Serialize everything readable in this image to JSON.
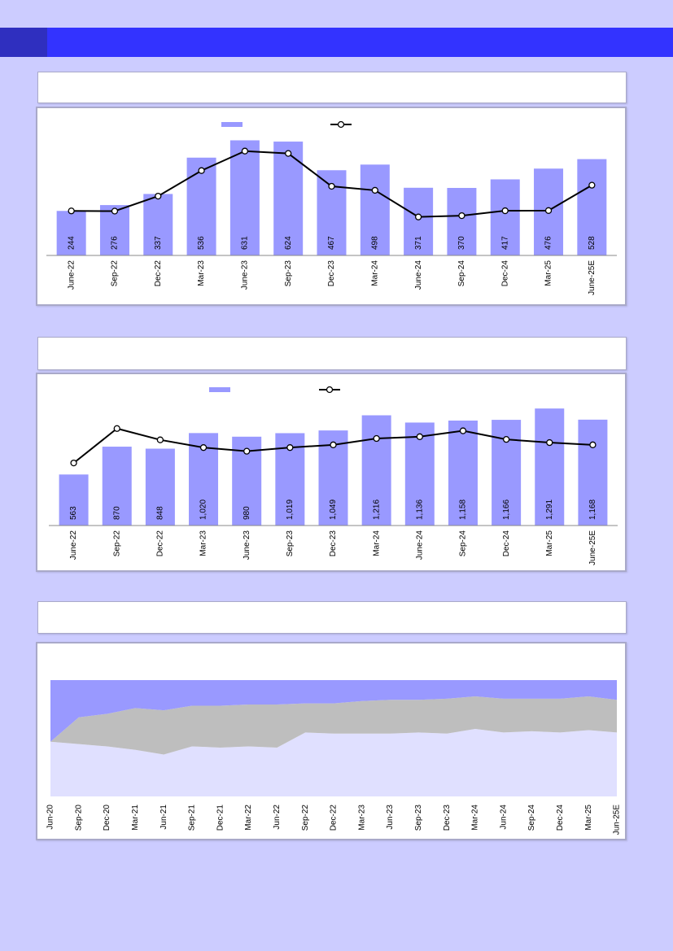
{
  "page": {
    "band_color": "#3333ff",
    "background": "#ccccff"
  },
  "chart_data": [
    {
      "type": "bar",
      "categories": [
        "June-22",
        "Sep-22",
        "Dec-22",
        "Mar-23",
        "June-23",
        "Sep-23",
        "Dec-23",
        "Mar-24",
        "June-24",
        "Sep-24",
        "Dec-24",
        "Mar-25",
        "June-25E"
      ],
      "series": [
        {
          "kind": "bar",
          "color": "#9999ff",
          "values": [
            244,
            276,
            337,
            536,
            631,
            624,
            467,
            498,
            371,
            370,
            417,
            476,
            528
          ]
        },
        {
          "kind": "line",
          "color": "#000000",
          "marker": "circle",
          "values": [
            244,
            243,
            325,
            465,
            572,
            559,
            379,
            357,
            211,
            218,
            245,
            246,
            385
          ]
        }
      ],
      "legend_position": "top-center",
      "ylim": [
        0,
        700
      ]
    },
    {
      "type": "bar",
      "categories": [
        "June-22",
        "Sep-22",
        "Dec-22",
        "Mar-23",
        "June-23",
        "Sep-23",
        "Dec-23",
        "Mar-24",
        "June-24",
        "Sep-24",
        "Dec-24",
        "Mar-25",
        "June-25E"
      ],
      "series": [
        {
          "kind": "bar",
          "color": "#9999ff",
          "values": [
            563,
            870,
            848,
            1020,
            980,
            1019,
            1049,
            1216,
            1136,
            1158,
            1166,
            1291,
            1168
          ]
        },
        {
          "kind": "line",
          "color": "#000000",
          "marker": "circle",
          "values": [
            690,
            1070,
            945,
            860,
            820,
            860,
            890,
            960,
            980,
            1045,
            950,
            915,
            890
          ]
        }
      ],
      "legend_position": "top-center",
      "ylim": [
        0,
        1400
      ]
    },
    {
      "type": "area",
      "stacked": true,
      "percent": true,
      "x": [
        "Jun-20",
        "Sep-20",
        "Dec-20",
        "Mar-21",
        "Jun-21",
        "Sep-21",
        "Dec-21",
        "Mar-22",
        "Jun-22",
        "Sep-22",
        "Dec-22",
        "Mar-23",
        "Jun-23",
        "Sep-23",
        "Dec-23",
        "Mar-24",
        "Jun-24",
        "Sep-24",
        "Dec-24",
        "Mar-25",
        "Jun-25E"
      ],
      "series": [
        {
          "color": "#e0e0ff",
          "values": [
            47,
            45,
            43,
            40,
            36,
            43,
            42,
            43,
            42,
            55,
            54,
            54,
            54,
            55,
            54,
            58,
            55,
            56,
            55,
            57,
            55
          ]
        },
        {
          "color": "#bebebe",
          "values": [
            0,
            23,
            28,
            36,
            38,
            35,
            36,
            36,
            37,
            25,
            26,
            28,
            29,
            28,
            30,
            28,
            29,
            28,
            29,
            29,
            28
          ]
        },
        {
          "color": "#9999ff",
          "values": [
            53,
            32,
            29,
            24,
            26,
            22,
            22,
            21,
            21,
            20,
            20,
            18,
            17,
            17,
            16,
            14,
            16,
            16,
            16,
            14,
            17
          ]
        }
      ],
      "ylim": [
        0,
        100
      ]
    }
  ]
}
